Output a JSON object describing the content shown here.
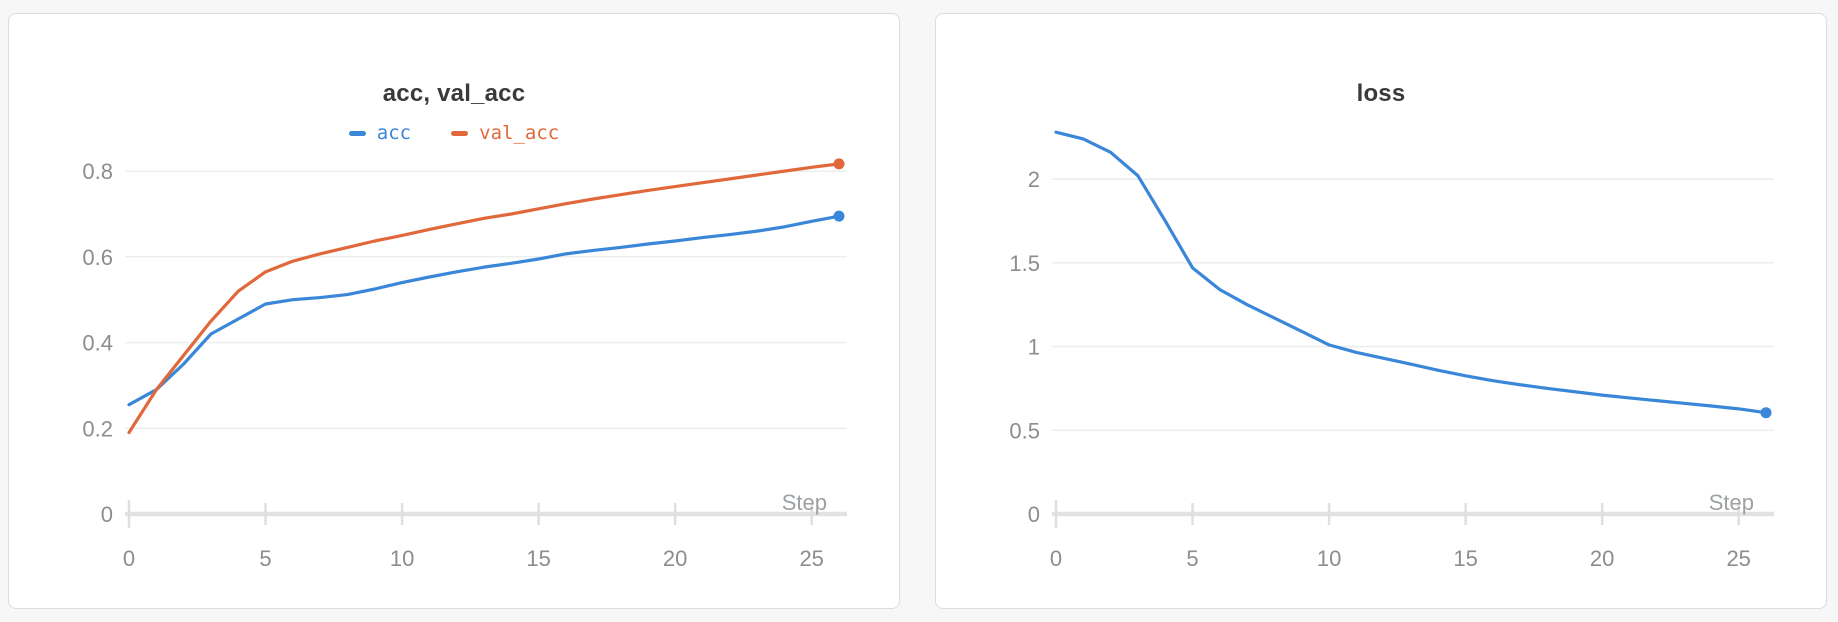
{
  "page": {
    "background": "#f7f7f8",
    "panel_background": "#ffffff",
    "panel_border": "#dcdcdc"
  },
  "style": {
    "grid_color": "#ececec",
    "axis_color": "#e2e2e2",
    "tick_color": "#dfdfdf",
    "tick_text_color": "#8d8d91",
    "step_label_color": "#9da1a4",
    "title_color": "#3a3a3a"
  },
  "chart_data": [
    {
      "type": "line",
      "title": "acc, val_acc",
      "xlabel": "Step",
      "legend_position": "top",
      "grid": true,
      "xlim": [
        0,
        26
      ],
      "ylim": [
        0,
        0.84
      ],
      "x": [
        0,
        1,
        2,
        3,
        4,
        5,
        6,
        7,
        8,
        9,
        10,
        11,
        12,
        13,
        14,
        15,
        16,
        17,
        18,
        19,
        20,
        21,
        22,
        23,
        24,
        25,
        26
      ],
      "x_ticks": [
        {
          "v": 0,
          "label": "0"
        },
        {
          "v": 5,
          "label": "5"
        },
        {
          "v": 10,
          "label": "10"
        },
        {
          "v": 15,
          "label": "15"
        },
        {
          "v": 20,
          "label": "20"
        },
        {
          "v": 25,
          "label": "25"
        }
      ],
      "y_ticks": [
        {
          "v": 0,
          "label": "0"
        },
        {
          "v": 0.2,
          "label": "0.2"
        },
        {
          "v": 0.4,
          "label": "0.4"
        },
        {
          "v": 0.6,
          "label": "0.6"
        },
        {
          "v": 0.8,
          "label": "0.8"
        }
      ],
      "series": [
        {
          "name": "acc",
          "color": "#3a87d9",
          "values": [
            0.255,
            0.29,
            0.35,
            0.42,
            0.455,
            0.49,
            0.5,
            0.505,
            0.512,
            0.525,
            0.54,
            0.553,
            0.565,
            0.576,
            0.585,
            0.595,
            0.607,
            0.615,
            0.622,
            0.63,
            0.637,
            0.645,
            0.652,
            0.66,
            0.67,
            0.683,
            0.695
          ]
        },
        {
          "name": "val_acc",
          "color": "#e0683b",
          "values": [
            0.19,
            0.29,
            0.37,
            0.45,
            0.52,
            0.565,
            0.59,
            0.607,
            0.622,
            0.637,
            0.65,
            0.664,
            0.677,
            0.69,
            0.7,
            0.712,
            0.724,
            0.735,
            0.745,
            0.755,
            0.764,
            0.773,
            0.782,
            0.791,
            0.8,
            0.809,
            0.817
          ]
        }
      ]
    },
    {
      "type": "line",
      "title": "loss",
      "xlabel": "Step",
      "legend_position": "none",
      "grid": true,
      "xlim": [
        0,
        26
      ],
      "ylim": [
        0,
        2.15
      ],
      "x": [
        0,
        1,
        2,
        3,
        4,
        5,
        6,
        7,
        8,
        9,
        10,
        11,
        12,
        13,
        14,
        15,
        16,
        17,
        18,
        19,
        20,
        21,
        22,
        23,
        24,
        25,
        26
      ],
      "x_ticks": [
        {
          "v": 0,
          "label": "0"
        },
        {
          "v": 5,
          "label": "5"
        },
        {
          "v": 10,
          "label": "10"
        },
        {
          "v": 15,
          "label": "15"
        },
        {
          "v": 20,
          "label": "20"
        },
        {
          "v": 25,
          "label": "25"
        }
      ],
      "y_ticks": [
        {
          "v": 0,
          "label": "0"
        },
        {
          "v": 0.5,
          "label": "0.5"
        },
        {
          "v": 1,
          "label": "1"
        },
        {
          "v": 1.5,
          "label": "1.5"
        },
        {
          "v": 2,
          "label": "2"
        }
      ],
      "series": [
        {
          "name": "loss",
          "color": "#3a87d9",
          "values": [
            2.28,
            2.24,
            2.16,
            2.02,
            1.75,
            1.47,
            1.34,
            1.25,
            1.17,
            1.09,
            1.01,
            0.965,
            0.93,
            0.895,
            0.858,
            0.825,
            0.796,
            0.772,
            0.75,
            0.73,
            0.71,
            0.693,
            0.677,
            0.661,
            0.645,
            0.628,
            0.605
          ]
        }
      ]
    }
  ]
}
